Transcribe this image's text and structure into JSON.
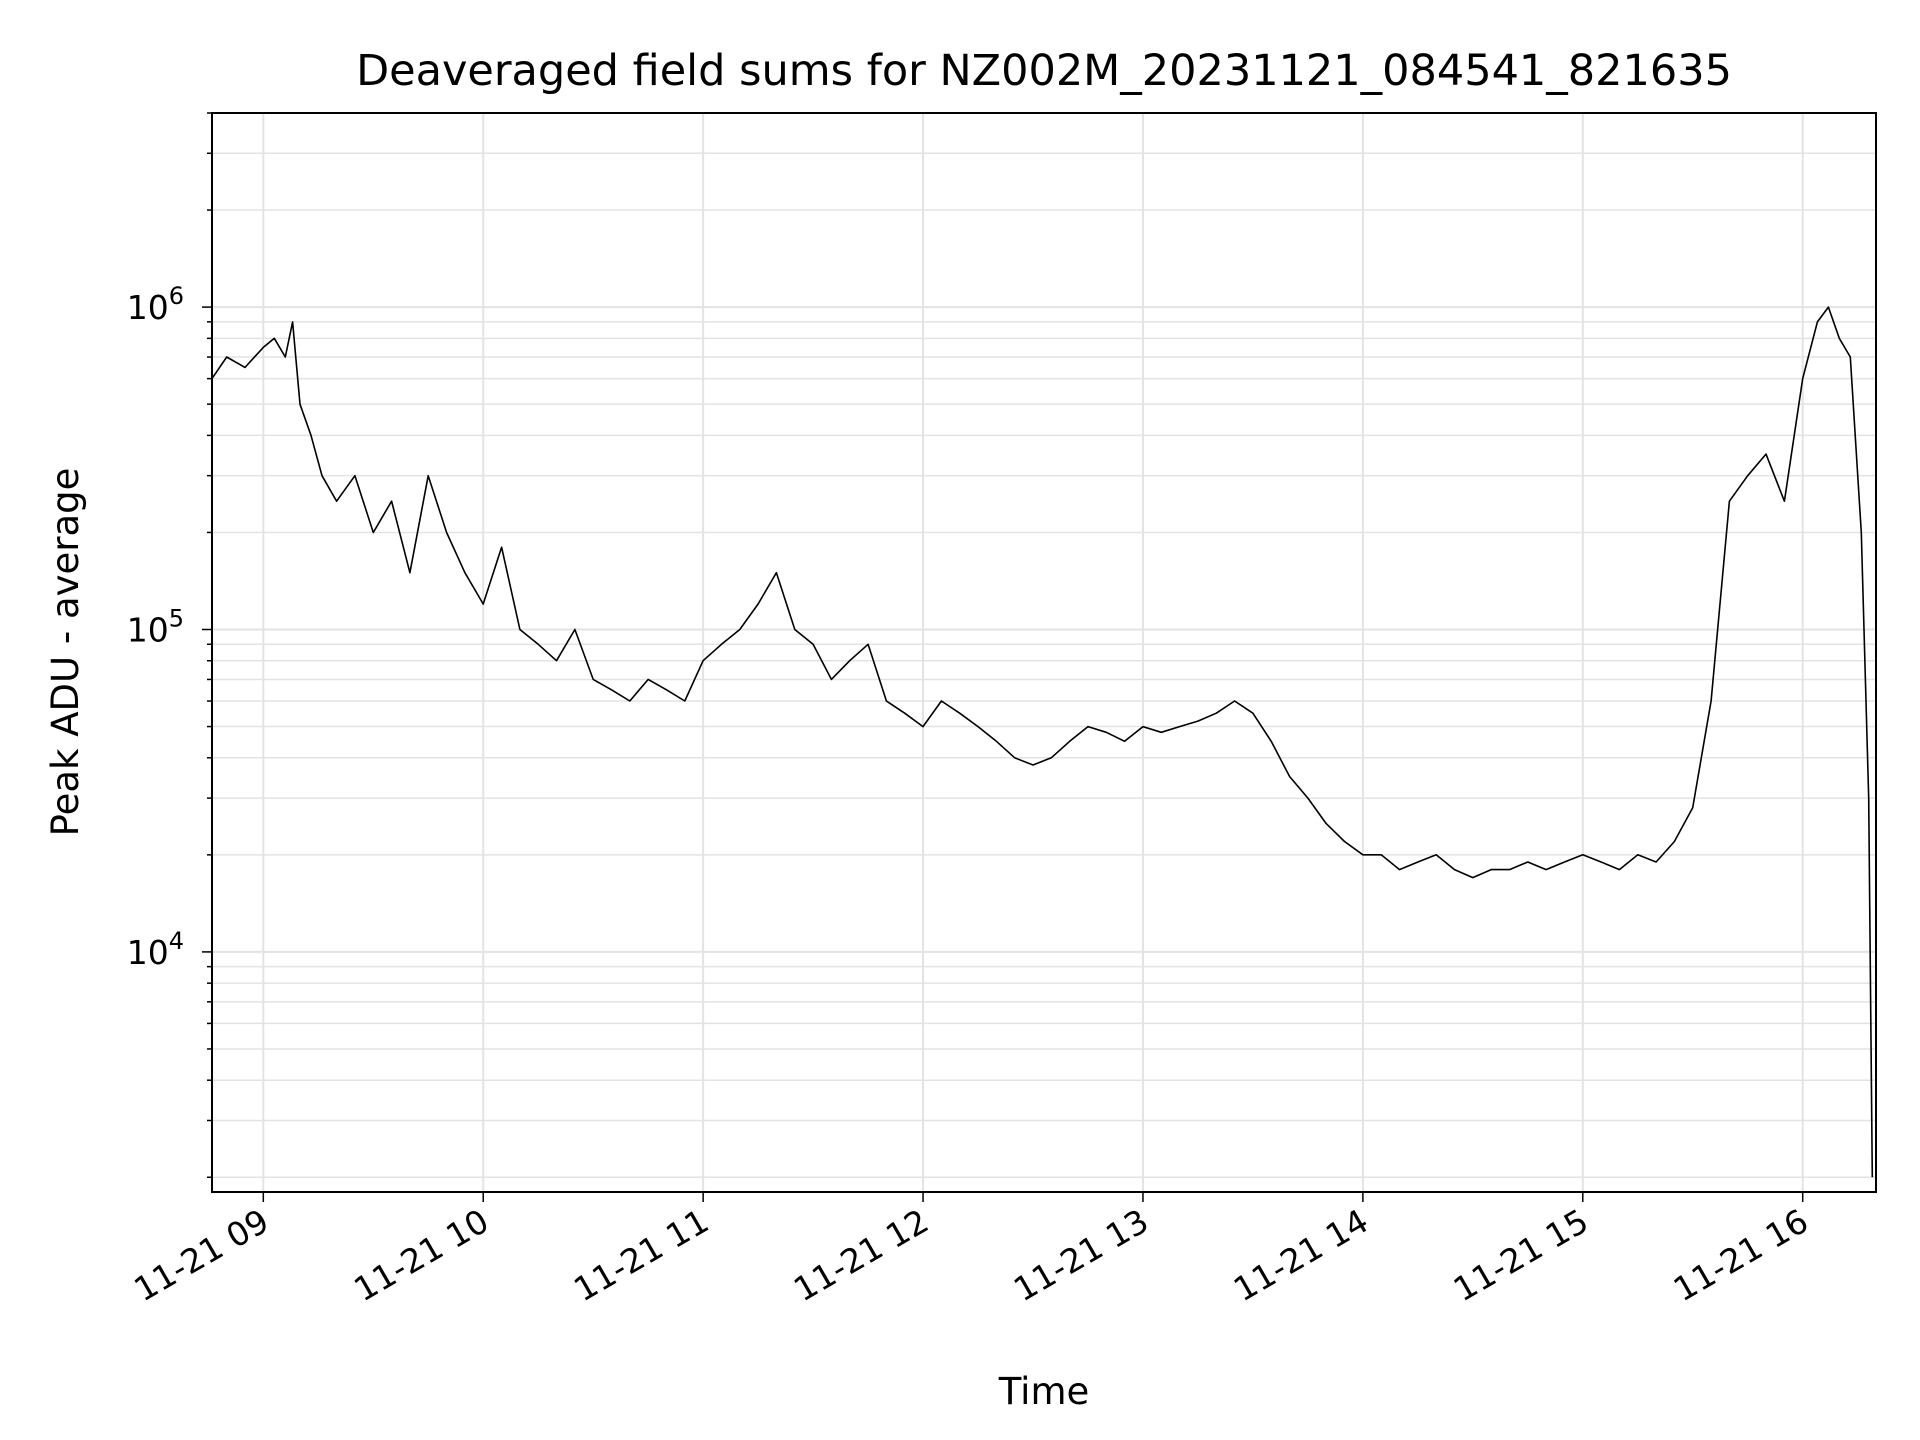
{
  "chart_data": {
    "type": "line",
    "title": "Deaveraged field sums for NZ002M_20231121_084541_821635",
    "xlabel": "Time",
    "ylabel": "Peak ADU - average",
    "yscale": "log",
    "ylim": [
      1800,
      4000000
    ],
    "xlim": [
      "2023-11-21 08:46",
      "2023-11-21 16:20"
    ],
    "grid": true,
    "line_color": "#000000",
    "grid_color": "#e3e3e3",
    "x_ticks": [
      "11-21 09",
      "11-21 10",
      "11-21 11",
      "11-21 12",
      "11-21 13",
      "11-21 14",
      "11-21 15",
      "11-21 16"
    ],
    "y_ticks": [
      {
        "value": 10000,
        "base": "10",
        "exp": "4"
      },
      {
        "value": 100000,
        "base": "10",
        "exp": "5"
      },
      {
        "value": 1000000,
        "base": "10",
        "exp": "6"
      }
    ],
    "series": [
      {
        "x": [
          "08:46",
          "08:50",
          "08:55",
          "09:00",
          "09:03",
          "09:06",
          "09:08",
          "09:10",
          "09:13",
          "09:16",
          "09:20",
          "09:25",
          "09:30",
          "09:35",
          "09:40",
          "09:45",
          "09:50",
          "09:55",
          "10:00",
          "10:05",
          "10:10",
          "10:15",
          "10:20",
          "10:25",
          "10:30",
          "10:35",
          "10:40",
          "10:45",
          "10:50",
          "10:55",
          "11:00",
          "11:05",
          "11:10",
          "11:15",
          "11:20",
          "11:25",
          "11:30",
          "11:35",
          "11:40",
          "11:45",
          "11:50",
          "11:55",
          "12:00",
          "12:05",
          "12:10",
          "12:15",
          "12:20",
          "12:25",
          "12:30",
          "12:35",
          "12:40",
          "12:45",
          "12:50",
          "12:55",
          "13:00",
          "13:05",
          "13:10",
          "13:15",
          "13:20",
          "13:25",
          "13:30",
          "13:35",
          "13:40",
          "13:45",
          "13:50",
          "13:55",
          "14:00",
          "14:05",
          "14:10",
          "14:15",
          "14:20",
          "14:25",
          "14:30",
          "14:35",
          "14:40",
          "14:45",
          "14:50",
          "14:55",
          "15:00",
          "15:05",
          "15:10",
          "15:15",
          "15:20",
          "15:25",
          "15:30",
          "15:35",
          "15:40",
          "15:45",
          "15:50",
          "15:55",
          "16:00",
          "16:04",
          "16:07",
          "16:10",
          "16:13",
          "16:16",
          "16:18",
          "16:19"
        ],
        "y": [
          600000,
          700000,
          650000,
          750000,
          800000,
          700000,
          900000,
          500000,
          400000,
          300000,
          250000,
          300000,
          200000,
          250000,
          150000,
          300000,
          200000,
          150000,
          120000,
          180000,
          100000,
          90000,
          80000,
          100000,
          70000,
          65000,
          60000,
          70000,
          65000,
          60000,
          80000,
          90000,
          100000,
          120000,
          150000,
          100000,
          90000,
          70000,
          80000,
          90000,
          60000,
          55000,
          50000,
          60000,
          55000,
          50000,
          45000,
          40000,
          38000,
          40000,
          45000,
          50000,
          48000,
          45000,
          50000,
          48000,
          50000,
          52000,
          55000,
          60000,
          55000,
          45000,
          35000,
          30000,
          25000,
          22000,
          20000,
          20000,
          18000,
          19000,
          20000,
          18000,
          17000,
          18000,
          18000,
          19000,
          18000,
          19000,
          20000,
          19000,
          18000,
          20000,
          19000,
          22000,
          28000,
          60000,
          250000,
          300000,
          350000,
          250000,
          600000,
          900000,
          1000000,
          800000,
          700000,
          200000,
          30000,
          2000
        ]
      }
    ]
  }
}
